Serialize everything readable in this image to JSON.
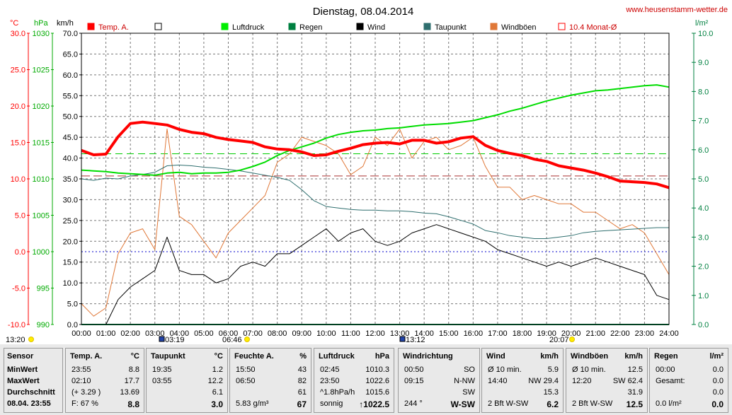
{
  "title": "Dienstag, 08.04.2014",
  "site": "www.heusenstamm-wetter.de",
  "units": {
    "c": "°C",
    "hpa": "hPa",
    "kmh": "km/h",
    "lm2": "l/m²"
  },
  "colors": {
    "temp": "#ff0000",
    "pressure": "#00dd00",
    "wind": "#000000",
    "dew": "#2f6f6f",
    "gust": "#e07838",
    "rain": "#008040",
    "avg": "#aa3333"
  },
  "legend": [
    {
      "label": "Temp. A.",
      "color": "#ff0000",
      "style": "filled"
    },
    {
      "label": "",
      "color": "#000000",
      "style": "empty"
    },
    {
      "label": "Luftdruck",
      "color": "#00ee00",
      "style": "filled"
    },
    {
      "label": "Regen",
      "color": "#008040",
      "style": "filled"
    },
    {
      "label": "Wind",
      "color": "#000000",
      "style": "filled"
    },
    {
      "label": "Taupunkt",
      "color": "#2f6f6f",
      "style": "filled"
    },
    {
      "label": "Windböen",
      "color": "#e07838",
      "style": "filled"
    },
    {
      "label": "10.4 Monat-Ø",
      "color": "#ff0000",
      "style": "empty"
    }
  ],
  "axes": {
    "temp_ticks": [
      "30.0",
      "25.0",
      "20.0",
      "15.0",
      "10.0",
      "5.0",
      "0.0",
      "-5.0",
      "-10.0"
    ],
    "hpa_ticks": [
      "1030",
      "1025",
      "1020",
      "1015",
      "1010",
      "1005",
      "1000",
      "995",
      "990"
    ],
    "kmh_ticks": [
      "70.0",
      "65.0",
      "60.0",
      "55.0",
      "50.0",
      "45.0",
      "40.0",
      "35.0",
      "30.0",
      "25.0",
      "20.0",
      "15.0",
      "10.0",
      "5.0",
      "0.0"
    ],
    "rain_ticks": [
      "10.0",
      "9.0",
      "8.0",
      "7.0",
      "6.0",
      "5.0",
      "4.0",
      "3.0",
      "2.0",
      "1.0",
      "0.0"
    ],
    "time_ticks": [
      "00:00",
      "01:00",
      "02:00",
      "03:00",
      "04:00",
      "05:00",
      "06:00",
      "07:00",
      "08:00",
      "09:00",
      "10:00",
      "11:00",
      "12:00",
      "13:00",
      "14:00",
      "15:00",
      "16:00",
      "17:00",
      "18:00",
      "19:00",
      "20:00",
      "21:00",
      "22:00",
      "23:00",
      "24:00"
    ]
  },
  "markers": [
    "13:20",
    "03:19",
    "06:46",
    "13:12",
    "20:07"
  ],
  "chart_data": {
    "type": "line",
    "x": [
      0,
      0.5,
      1,
      1.5,
      2,
      2.5,
      3,
      3.5,
      4,
      4.5,
      5,
      5.5,
      6,
      6.5,
      7,
      7.5,
      8,
      8.5,
      9,
      9.5,
      10,
      10.5,
      11,
      11.5,
      12,
      12.5,
      13,
      13.5,
      14,
      14.5,
      15,
      15.5,
      16,
      16.5,
      17,
      17.5,
      18,
      18.5,
      19,
      19.5,
      20,
      20.5,
      21,
      21.5,
      22,
      22.5,
      23,
      23.5,
      24
    ],
    "series": [
      {
        "name": "Temp. A.",
        "unit": "°C",
        "axis": "temp",
        "values": [
          13.9,
          13.3,
          13.4,
          15.8,
          17.6,
          17.8,
          17.6,
          17.4,
          16.8,
          16.4,
          16.2,
          15.7,
          15.4,
          15.2,
          15.0,
          14.4,
          14.1,
          14.0,
          13.7,
          13.2,
          13.3,
          13.8,
          14.2,
          14.7,
          14.9,
          15.0,
          14.8,
          15.3,
          15.3,
          14.9,
          15.1,
          15.6,
          15.8,
          14.6,
          13.9,
          13.5,
          13.2,
          12.7,
          12.4,
          11.8,
          11.5,
          11.2,
          10.8,
          10.3,
          9.7,
          9.6,
          9.5,
          9.3,
          8.8
        ]
      },
      {
        "name": "Luftdruck",
        "unit": "hPa",
        "axis": "hpa",
        "values": [
          1011.2,
          1011.1,
          1011.0,
          1010.8,
          1010.7,
          1010.6,
          1010.5,
          1010.8,
          1010.9,
          1010.7,
          1010.8,
          1010.8,
          1010.9,
          1011.2,
          1011.7,
          1012.3,
          1013.2,
          1013.9,
          1014.4,
          1014.9,
          1015.6,
          1016.1,
          1016.4,
          1016.6,
          1016.7,
          1016.9,
          1017.0,
          1017.2,
          1017.4,
          1017.5,
          1017.6,
          1017.8,
          1018.0,
          1018.4,
          1018.8,
          1019.3,
          1019.7,
          1020.2,
          1020.7,
          1021.1,
          1021.5,
          1021.8,
          1022.1,
          1022.2,
          1022.4,
          1022.6,
          1022.8,
          1022.9,
          1022.6
        ]
      },
      {
        "name": "Taupunkt",
        "unit": "°C",
        "axis": "temp",
        "values": [
          10.0,
          9.8,
          10.1,
          10.0,
          10.4,
          10.6,
          10.9,
          11.8,
          11.9,
          11.8,
          11.6,
          11.5,
          11.3,
          11.1,
          10.8,
          10.5,
          10.2,
          9.8,
          8.5,
          7.0,
          6.2,
          6.0,
          5.8,
          5.7,
          5.7,
          5.6,
          5.6,
          5.5,
          5.3,
          5.2,
          4.8,
          4.3,
          3.8,
          2.9,
          2.6,
          2.2,
          2.0,
          1.8,
          1.8,
          2.0,
          2.2,
          2.6,
          2.8,
          2.9,
          3.0,
          3.1,
          3.2,
          3.3,
          3.3
        ]
      },
      {
        "name": "Wind",
        "unit": "km/h",
        "axis": "kmh",
        "values": [
          0,
          0,
          0,
          6,
          9,
          11,
          13,
          21,
          13,
          12,
          12,
          10,
          11,
          14,
          15,
          14,
          17,
          17,
          19,
          21,
          23,
          20,
          22,
          23,
          20,
          19,
          20,
          22,
          23,
          24,
          23,
          22,
          21,
          20,
          18,
          17,
          16,
          15,
          14,
          15,
          14,
          15,
          16,
          15,
          14,
          13,
          12,
          7,
          6
        ]
      },
      {
        "name": "Windböen",
        "unit": "km/h",
        "axis": "kmh",
        "values": [
          5,
          2,
          4,
          17,
          22,
          23,
          18,
          47,
          26,
          24,
          20,
          16,
          22,
          25,
          28,
          31,
          39,
          41,
          45,
          44,
          43,
          41,
          36,
          38,
          45,
          43,
          47,
          40,
          44,
          45,
          42,
          43,
          45,
          38,
          33,
          33,
          30,
          31,
          30,
          29,
          29,
          27,
          27,
          25,
          23,
          24,
          22,
          17,
          12
        ]
      },
      {
        "name": "Regen",
        "unit": "l/m²",
        "axis": "rain",
        "values": [
          0,
          0,
          0,
          0,
          0,
          0,
          0,
          0,
          0,
          0,
          0,
          0,
          0,
          0,
          0,
          0,
          0,
          0,
          0,
          0,
          0,
          0,
          0,
          0,
          0,
          0,
          0,
          0,
          0,
          0,
          0,
          0,
          0,
          0,
          0,
          0,
          0,
          0,
          0,
          0,
          0,
          0,
          0,
          0,
          0,
          0,
          0,
          0,
          0
        ]
      }
    ],
    "reference": {
      "name": "10.4 Monat-Ø",
      "value": 10.4,
      "unit": "°C"
    },
    "xlim": [
      0,
      24
    ],
    "ylim_temp": [
      -10,
      30
    ],
    "ylim_hpa": [
      990,
      1030
    ],
    "ylim_kmh": [
      0,
      70
    ],
    "ylim_rain": [
      0,
      10
    ],
    "grid": true
  },
  "table": {
    "sensor": {
      "title": "Sensor",
      "rows": [
        "MinWert",
        "MaxWert",
        "Durchschnitt",
        "08.04. 23:55"
      ]
    },
    "temp": {
      "title": "Temp. A.",
      "unit": "°C",
      "rows": [
        [
          "23:55",
          "8.8"
        ],
        [
          "02:10",
          "17.7"
        ],
        [
          "(+ 3.29 )",
          "13.69"
        ],
        [
          "F: 67 %",
          "8.8"
        ]
      ]
    },
    "dew": {
      "title": "Taupunkt",
      "unit": "°C",
      "rows": [
        [
          "19:35",
          "1.2"
        ],
        [
          "03:55",
          "12.2"
        ],
        [
          "",
          "6.1"
        ],
        [
          "",
          "3.0"
        ]
      ]
    },
    "hum": {
      "title": "Feuchte A.",
      "unit": "%",
      "rows": [
        [
          "15:50",
          "43"
        ],
        [
          "06:50",
          "82"
        ],
        [
          "",
          "61"
        ],
        [
          "5.83 g/m³",
          "67"
        ]
      ]
    },
    "press": {
      "title": "Luftdruck",
      "unit": "hPa",
      "rows": [
        [
          "02:45",
          "1010.3"
        ],
        [
          "23:50",
          "1022.6"
        ],
        [
          "^1.8hPa/h",
          "1015.6"
        ],
        [
          "sonnig",
          "↑1022.5"
        ]
      ]
    },
    "dir": {
      "title": "Windrichtung",
      "unit": "",
      "rows": [
        [
          "00:50",
          "SO"
        ],
        [
          "09:15",
          "N-NW"
        ],
        [
          "",
          "SW"
        ],
        [
          "244 °",
          "W-SW"
        ]
      ]
    },
    "wind": {
      "title": "Wind",
      "unit": "km/h",
      "rows": [
        [
          "Ø 10 min.",
          "5.9"
        ],
        [
          "14:40",
          "NW 29.4"
        ],
        [
          "",
          "15.3"
        ],
        [
          "2 Bft W-SW",
          "6.2"
        ]
      ]
    },
    "gust": {
      "title": "Windböen",
      "unit": "km/h",
      "rows": [
        [
          "Ø 10 min.",
          "12.5"
        ],
        [
          "12:20",
          "SW 62.4"
        ],
        [
          "",
          "31.9"
        ],
        [
          "2 Bft W-SW",
          "12.5"
        ]
      ]
    },
    "rain": {
      "title": "Regen",
      "unit": "l/m²",
      "rows": [
        [
          "00:00",
          "0.0"
        ],
        [
          "Gesamt:",
          "0.0"
        ],
        [
          "",
          "0.0"
        ],
        [
          "0.0 l/m²",
          "0.0"
        ]
      ]
    }
  }
}
